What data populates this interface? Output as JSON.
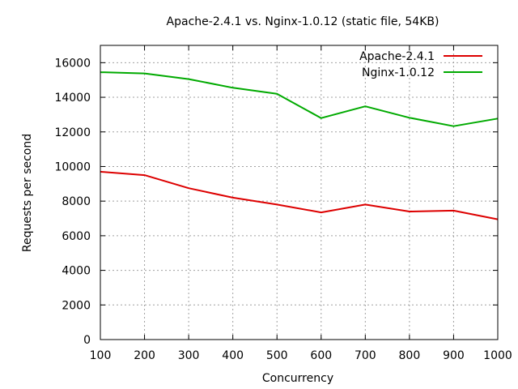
{
  "chart_data": {
    "type": "line",
    "title": "Apache-2.4.1 vs. Nginx-1.0.12 (static file, 54KB)",
    "xlabel": "Concurrency",
    "ylabel": "Requests per second",
    "xlim": [
      100,
      1000
    ],
    "ylim": [
      0,
      17000
    ],
    "xticks": [
      100,
      200,
      300,
      400,
      500,
      600,
      700,
      800,
      900,
      1000
    ],
    "yticks": [
      0,
      2000,
      4000,
      6000,
      8000,
      10000,
      12000,
      14000,
      16000
    ],
    "grid": true,
    "legend_position": "top-right",
    "x": [
      100,
      200,
      300,
      400,
      500,
      600,
      700,
      800,
      900,
      1000
    ],
    "series": [
      {
        "name": "Apache-2.4.1",
        "color": "#dd0000",
        "values": [
          9700,
          9500,
          8750,
          8200,
          7800,
          7350,
          7800,
          7400,
          7450,
          6950
        ]
      },
      {
        "name": "Nginx-1.0.12",
        "color": "#00aa00",
        "values": [
          15450,
          15380,
          15050,
          14550,
          14200,
          12800,
          13480,
          12820,
          12330,
          12770
        ]
      }
    ]
  }
}
